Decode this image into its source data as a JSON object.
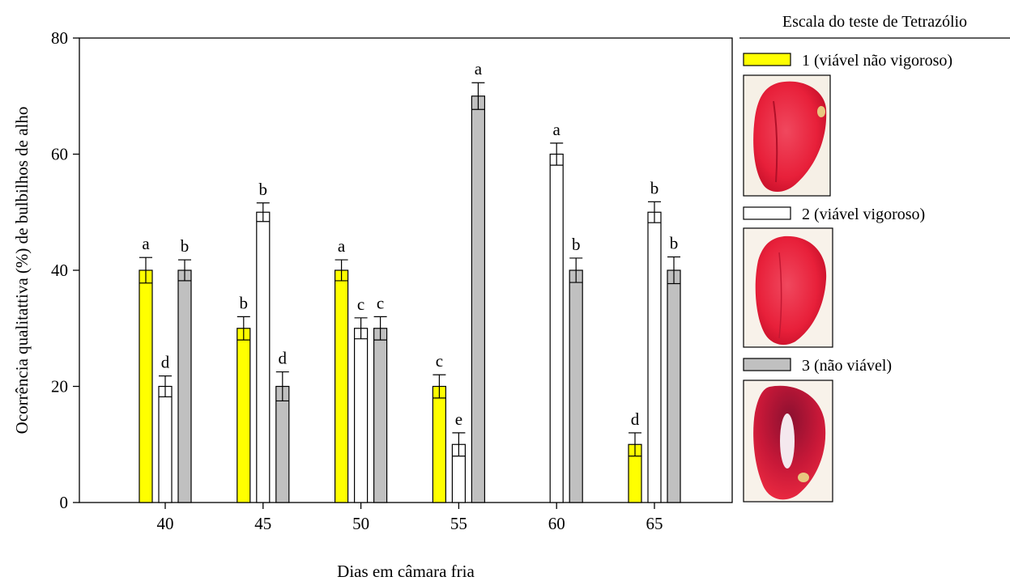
{
  "chart_data": {
    "type": "bar",
    "categories": [
      "40",
      "45",
      "50",
      "55",
      "60",
      "65"
    ],
    "xlabel": "Dias em câmara fria",
    "ylabel": "Ocorrência qualitattiva (%) de bulbilhos de alho",
    "ylim": [
      0,
      80
    ],
    "yticks": [
      "0",
      "20",
      "40",
      "60",
      "80"
    ],
    "grid": false,
    "legend_title": "Escala do teste de Tetrazólio",
    "legend_position": "right",
    "series": [
      {
        "name": "1 (viável não vigoroso)",
        "color": "#ffff00",
        "values": [
          40,
          30,
          40,
          20,
          null,
          10
        ],
        "errors": [
          2.2,
          2.0,
          1.8,
          2.0,
          null,
          2.0
        ],
        "letters": [
          "a",
          "b",
          "a",
          "c",
          "",
          "d"
        ]
      },
      {
        "name": "2 (viável vigoroso)",
        "color": "#ffffff",
        "values": [
          20,
          50,
          30,
          10,
          60,
          50
        ],
        "errors": [
          1.8,
          1.6,
          1.8,
          2.0,
          1.9,
          1.8
        ],
        "letters": [
          "d",
          "b",
          "c",
          "e",
          "a",
          "b"
        ]
      },
      {
        "name": "3 (não viável)",
        "color": "#c0c0c0",
        "values": [
          40,
          20,
          30,
          70,
          40,
          40
        ],
        "errors": [
          1.8,
          2.5,
          2.0,
          2.3,
          2.1,
          2.3
        ],
        "letters": [
          "b",
          "d",
          "c",
          "a",
          "b",
          "b"
        ]
      }
    ]
  }
}
